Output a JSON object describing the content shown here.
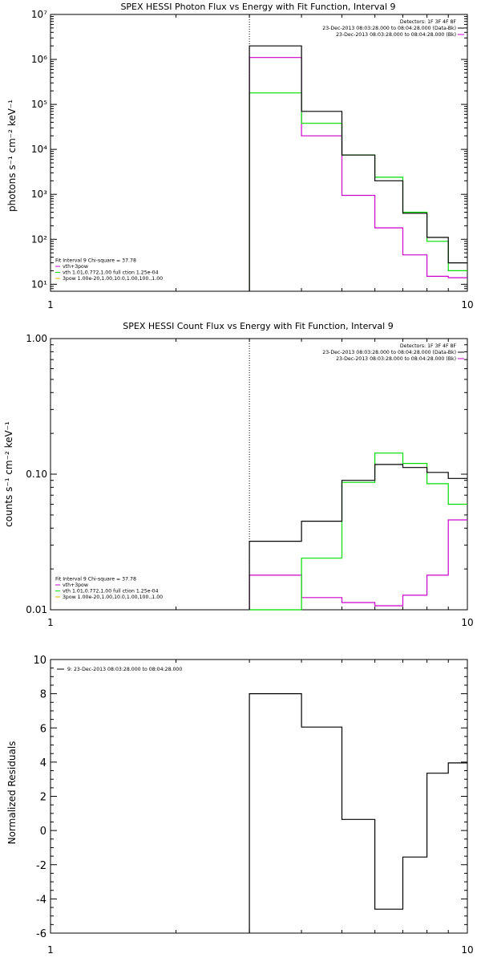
{
  "colors": {
    "axis": "#000000",
    "data": "#000000",
    "model": "#00dd00",
    "component": "#cc00cc",
    "fit_marker": "#000000"
  },
  "chart_data": [
    {
      "type": "line",
      "step": true,
      "title": "SPEX HESSI Photon Flux vs Energy with Fit Function, Interval 9",
      "xlabel": "",
      "ylabel": "photons s⁻¹ cm⁻² keV⁻¹",
      "xscale": "log",
      "yscale": "log",
      "xlim": [
        1,
        10
      ],
      "ylim": [
        7,
        10000000
      ],
      "x_ticks": [
        "1",
        "10"
      ],
      "y_ticks": [
        "10¹",
        "10²",
        "10³",
        "10⁴",
        "10⁵",
        "10⁶",
        "10⁷"
      ],
      "vline_x": 3,
      "bin_edges": [
        3,
        4,
        5,
        6,
        7,
        8,
        9,
        10
      ],
      "series": [
        {
          "color_key": "data",
          "values": [
            2000000,
            70000,
            7500,
            2000,
            380,
            110,
            30
          ]
        },
        {
          "color_key": "model",
          "values": [
            180000,
            38000,
            7500,
            2400,
            400,
            90,
            20
          ]
        },
        {
          "color_key": "component",
          "values": [
            1100000,
            20000,
            950,
            180,
            45,
            15,
            14
          ]
        }
      ],
      "legend_top_right": [
        {
          "text": "Detectors: 1F 3F 4F 8F",
          "color_key": ""
        },
        {
          "text": "23-Dec-2013 08:03:28.000 to 08:04:28.000 (Data-Bk)",
          "color_key": "data"
        },
        {
          "text": "23-Dec-2013 08:03:28.000 to 08:04:28.000 (Bk)",
          "color_key": "component"
        }
      ],
      "legend_bottom_left": [
        {
          "text": "Fit Interval 9   Chi-square = 37.78",
          "color_key": ""
        },
        {
          "text": "vth+3pow",
          "color_key": "component"
        },
        {
          "text": "vth 1.01,0.772,1.00  full ction 1.25e-04",
          "color_key": "model"
        },
        {
          "text": "3pow 1.00e-20,1.00,10.0,1.00,100.,1.00",
          "color_key": "yellow"
        }
      ],
      "legend_top_label": "",
      "hline_zero": false
    },
    {
      "type": "line",
      "step": true,
      "title": "SPEX HESSI Count Flux vs Energy with Fit Function, Interval 9",
      "xlabel": "",
      "ylabel": "counts s⁻¹ cm⁻² keV⁻¹",
      "xscale": "log",
      "yscale": "log",
      "xlim": [
        1,
        10
      ],
      "ylim": [
        0.01,
        1.0
      ],
      "x_ticks": [
        "1",
        "10"
      ],
      "y_ticks": [
        "0.01",
        "0.10",
        "1.00"
      ],
      "vline_x": 3,
      "bin_edges": [
        3,
        4,
        5,
        6,
        7,
        8,
        9,
        10
      ],
      "series": [
        {
          "color_key": "data",
          "values": [
            0.032,
            0.045,
            0.09,
            0.118,
            0.112,
            0.103,
            0.093
          ]
        },
        {
          "color_key": "model",
          "values": [
            0.005,
            0.024,
            0.087,
            0.143,
            0.12,
            0.085,
            0.06
          ]
        },
        {
          "color_key": "component",
          "values": [
            0.018,
            0.0123,
            0.0113,
            0.0107,
            0.0128,
            0.018,
            0.046
          ]
        }
      ],
      "legend_top_right": [
        {
          "text": "Detectors: 1F 3F 4F 8F",
          "color_key": ""
        },
        {
          "text": "23-Dec-2013 08:03:28.000 to 08:04:28.000 (Data-Bk)",
          "color_key": "data"
        },
        {
          "text": "23-Dec-2013 08:03:28.000 to 08:04:28.000 (Bk)",
          "color_key": "component"
        }
      ],
      "legend_bottom_left": [
        {
          "text": "Fit Interval 9   Chi-square = 37.78",
          "color_key": ""
        },
        {
          "text": "vth+3pow",
          "color_key": "component"
        },
        {
          "text": "vth 1.01,0.772,1.00  full ction 1.25e-04",
          "color_key": "model"
        },
        {
          "text": "3pow 1.00e-20,1.00,10.0,1.00,100.,1.00",
          "color_key": "yellow"
        }
      ],
      "legend_top_label": "",
      "hline_zero": false
    },
    {
      "type": "line",
      "step": true,
      "title": "",
      "xlabel": "",
      "ylabel": "Normalized Residuals",
      "xscale": "log",
      "yscale": "linear",
      "xlim": [
        1,
        10
      ],
      "ylim": [
        -6,
        10
      ],
      "x_ticks": [
        "1",
        "10"
      ],
      "y_ticks": [
        "-6",
        "-4",
        "-2",
        "0",
        "2",
        "4",
        "6",
        "8",
        "10"
      ],
      "vline_x": null,
      "bin_edges": [
        3,
        4,
        5,
        6,
        7,
        8,
        9,
        10
      ],
      "series": [
        {
          "color_key": "data",
          "values": [
            8.0,
            6.05,
            0.65,
            -4.6,
            -1.55,
            3.35,
            3.95
          ]
        }
      ],
      "legend_top_right": [],
      "legend_bottom_left": [],
      "legend_top_label": "9: 23-Dec-2013 08:03:28.000 to 08:04:28.000",
      "hline_zero": false
    }
  ]
}
